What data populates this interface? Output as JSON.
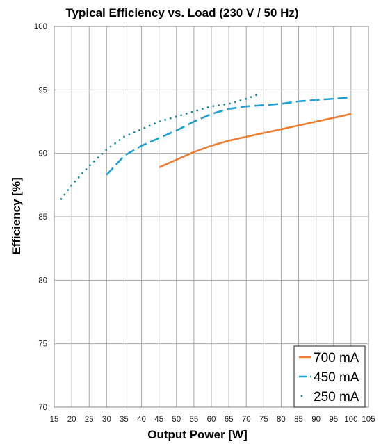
{
  "chart_data": {
    "type": "line",
    "title": "Typical Efficiency vs. Load (230 V / 50 Hz)",
    "xlabel": "Output Power [W]",
    "ylabel": "Efficiency [%]",
    "xlim": [
      15,
      105
    ],
    "ylim": [
      70,
      100
    ],
    "xticks": [
      15,
      20,
      25,
      30,
      35,
      40,
      45,
      50,
      55,
      60,
      65,
      70,
      75,
      80,
      85,
      90,
      95,
      100,
      105
    ],
    "yticks": [
      70,
      75,
      80,
      85,
      90,
      95,
      100
    ],
    "grid": true,
    "legend_position": "bottom-right",
    "series": [
      {
        "name": "700 mA",
        "color": "#ed7d31",
        "style": "solid",
        "x": [
          45,
          50,
          55,
          60,
          65,
          70,
          75,
          80,
          85,
          90,
          95,
          100
        ],
        "y": [
          88.9,
          89.5,
          90.1,
          90.6,
          91.0,
          91.3,
          91.6,
          91.9,
          92.2,
          92.5,
          92.8,
          93.1
        ]
      },
      {
        "name": "450 mA",
        "color": "#1f9fd2",
        "style": "dashed",
        "x": [
          30,
          35,
          40,
          45,
          50,
          55,
          60,
          65,
          70,
          75,
          80,
          85,
          90,
          95,
          100
        ],
        "y": [
          88.3,
          89.8,
          90.6,
          91.2,
          91.8,
          92.5,
          93.1,
          93.5,
          93.7,
          93.8,
          93.9,
          94.1,
          94.2,
          94.3,
          94.4
        ]
      },
      {
        "name": "250 mA",
        "color": "#1d8a99",
        "style": "dotted",
        "x": [
          17,
          20,
          25,
          30,
          35,
          40,
          45,
          50,
          55,
          60,
          65,
          70,
          73
        ],
        "y": [
          86.4,
          87.5,
          89.0,
          90.3,
          91.3,
          91.9,
          92.5,
          92.9,
          93.3,
          93.7,
          93.9,
          94.3,
          94.6
        ]
      }
    ]
  }
}
